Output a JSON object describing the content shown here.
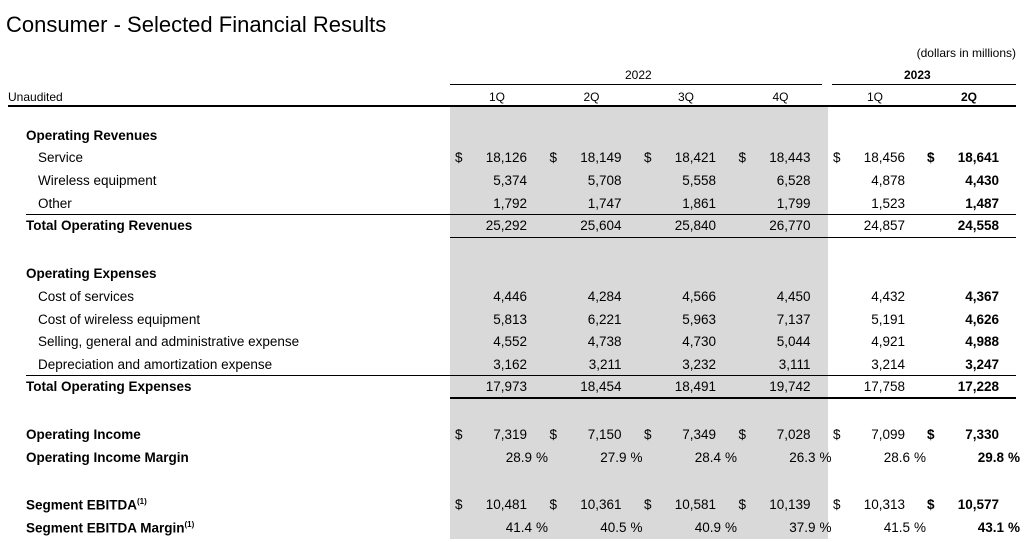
{
  "title": "Consumer - Selected Financial Results",
  "units_note": "(dollars in millions)",
  "stub_header": "Unaudited",
  "years": [
    {
      "label": "2022",
      "bold": false
    },
    {
      "label": "2023",
      "bold": true
    }
  ],
  "quarters": [
    "1Q",
    "2Q",
    "3Q",
    "4Q",
    "1Q",
    "2Q"
  ],
  "rows": [
    {
      "label": "Operating Revenues",
      "bold": true,
      "indent": false
    },
    {
      "label": "Service",
      "indent": true,
      "dollar": true,
      "values": [
        "18,126",
        "18,149",
        "18,421",
        "18,443",
        "18,456",
        "18,641"
      ]
    },
    {
      "label": "Wireless equipment",
      "indent": true,
      "values": [
        "5,374",
        "5,708",
        "5,558",
        "6,528",
        "4,878",
        "4,430"
      ]
    },
    {
      "label": "Other",
      "indent": true,
      "values": [
        "1,792",
        "1,747",
        "1,861",
        "1,799",
        "1,523",
        "1,487"
      ]
    },
    {
      "label": "Total Operating Revenues",
      "bold": true,
      "values": [
        "25,292",
        "25,604",
        "25,840",
        "26,770",
        "24,857",
        "24,558"
      ]
    },
    {
      "label": "Operating Expenses",
      "bold": true
    },
    {
      "label": "Cost of services",
      "indent": true,
      "values": [
        "4,446",
        "4,284",
        "4,566",
        "4,450",
        "4,432",
        "4,367"
      ]
    },
    {
      "label": "Cost of wireless equipment",
      "indent": true,
      "values": [
        "5,813",
        "6,221",
        "5,963",
        "7,137",
        "5,191",
        "4,626"
      ]
    },
    {
      "label": "Selling, general and administrative expense",
      "indent": true,
      "values": [
        "4,552",
        "4,738",
        "4,730",
        "5,044",
        "4,921",
        "4,988"
      ]
    },
    {
      "label": "Depreciation and amortization expense",
      "indent": true,
      "values": [
        "3,162",
        "3,211",
        "3,232",
        "3,111",
        "3,214",
        "3,247"
      ]
    },
    {
      "label": "Total Operating Expenses",
      "bold": true,
      "values": [
        "17,973",
        "18,454",
        "18,491",
        "19,742",
        "17,758",
        "17,228"
      ]
    },
    {
      "label": "Operating Income",
      "bold": true,
      "dollar": true,
      "values": [
        "7,319",
        "7,150",
        "7,349",
        "7,028",
        "7,099",
        "7,330"
      ]
    },
    {
      "label": "Operating Income Margin",
      "bold": true,
      "pct": true,
      "values": [
        "28.9",
        "27.9",
        "28.4",
        "26.3",
        "28.6",
        "29.8"
      ]
    },
    {
      "label": "Segment EBITDA",
      "footnote": "(1)",
      "bold": true,
      "dollar": true,
      "values": [
        "10,481",
        "10,361",
        "10,581",
        "10,139",
        "10,313",
        "10,577"
      ]
    },
    {
      "label": "Segment EBITDA Margin",
      "footnote": "(1)",
      "bold": true,
      "pct": true,
      "values": [
        "41.4",
        "40.5",
        "40.9",
        "37.9",
        "41.5",
        "43.1"
      ]
    }
  ],
  "dollar_sign": "$",
  "percent_sign": "%"
}
